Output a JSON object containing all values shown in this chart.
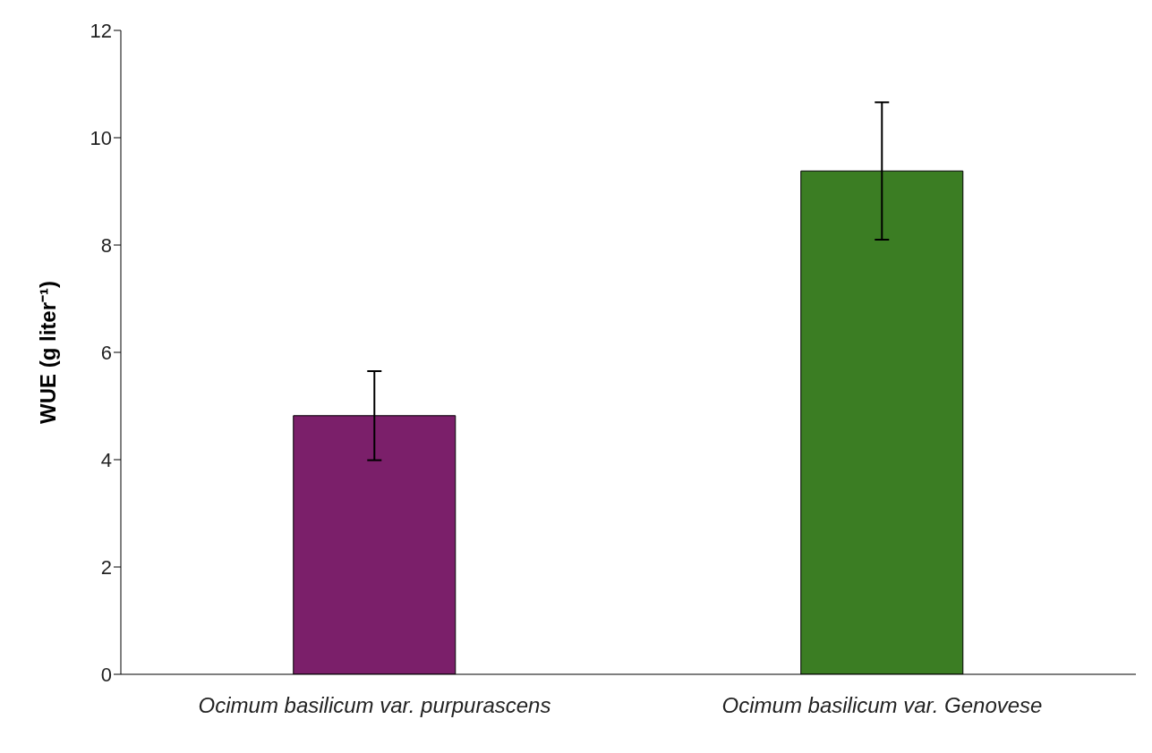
{
  "chart_data": {
    "type": "bar",
    "ylabel": "WUE (g liter⁻¹)",
    "categories": [
      "Ocimum basilicum var. purpurascens",
      "Ocimum basilicum var. Genovese"
    ],
    "values": [
      4.82,
      9.38
    ],
    "colors": [
      "#7b1f6a",
      "#3b7d23"
    ],
    "errors": [
      0.83,
      1.28
    ],
    "ylim": [
      0,
      12
    ],
    "yticks": [
      0,
      2,
      4,
      6,
      8,
      10,
      12
    ],
    "grid": false,
    "legend": false
  }
}
